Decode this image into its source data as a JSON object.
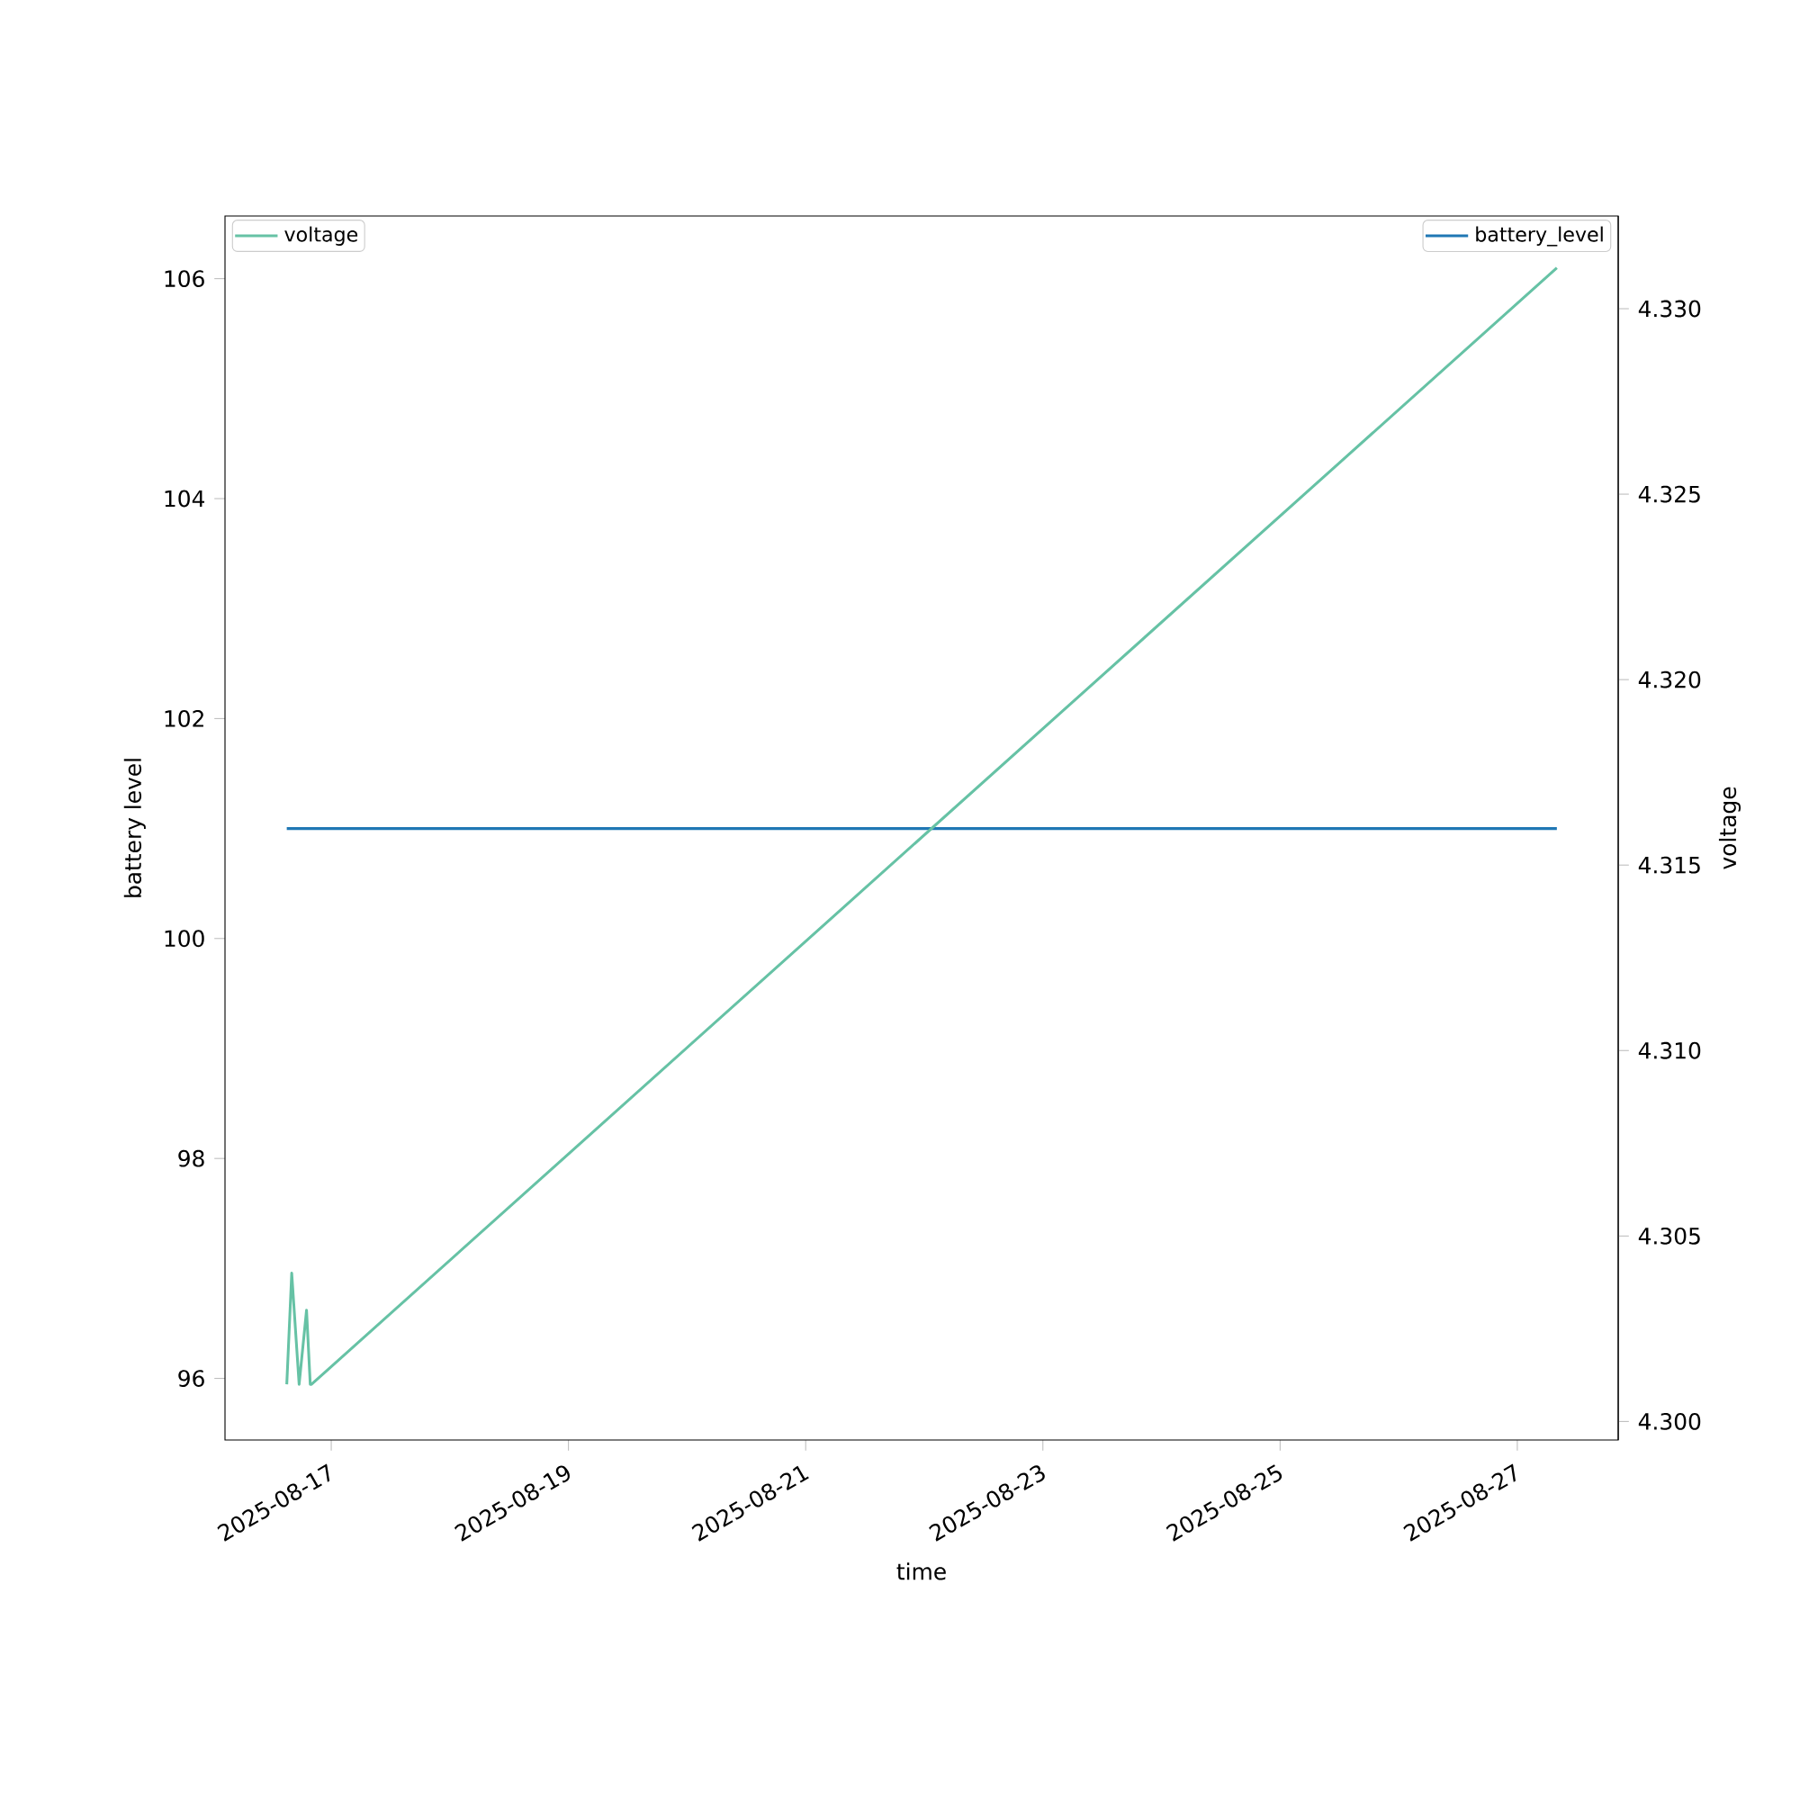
{
  "chart_data": {
    "type": "line",
    "xlabel": "time",
    "ylabel": "battery level",
    "y2label": "voltage",
    "xlim": [
      "2025-08-16T02:30",
      "2025-08-27T20:25"
    ],
    "xticks": [
      "2025-08-17",
      "2025-08-19",
      "2025-08-21",
      "2025-08-23",
      "2025-08-25",
      "2025-08-27"
    ],
    "ylim": [
      95.44,
      106.57
    ],
    "yticks": [
      96,
      98,
      100,
      102,
      104,
      106
    ],
    "y2lim": [
      4.2995,
      4.3325
    ],
    "y2ticks": [
      {
        "value": 4.3,
        "label": "4.300"
      },
      {
        "value": 4.305,
        "label": "4.305"
      },
      {
        "value": 4.31,
        "label": "4.310"
      },
      {
        "value": 4.315,
        "label": "4.315"
      },
      {
        "value": 4.32,
        "label": "4.320"
      },
      {
        "value": 4.325,
        "label": "4.325"
      },
      {
        "value": 4.33,
        "label": "4.330"
      }
    ],
    "legend": "top",
    "grid": false,
    "marker": "none",
    "line_style": "solid",
    "series": [
      {
        "name": "battery_level",
        "color": "#1f77b4",
        "x": [
          "2025-08-16T15:00",
          "2025-08-27T08:00"
        ],
        "values": [
          101,
          101
        ]
      },
      {
        "name": "voltage",
        "color": "#66c2a5",
        "axis": "y2",
        "x": [
          "2025-08-16T15:00",
          "2025-08-16T16:00",
          "2025-08-16T17:30",
          "2025-08-16T19:00",
          "2025-08-16T19:45",
          "2025-08-16T20:00",
          "2025-08-27T08:00"
        ],
        "values": [
          4.301,
          4.304,
          4.301,
          4.303,
          4.301,
          4.301,
          4.3311
        ]
      }
    ]
  }
}
